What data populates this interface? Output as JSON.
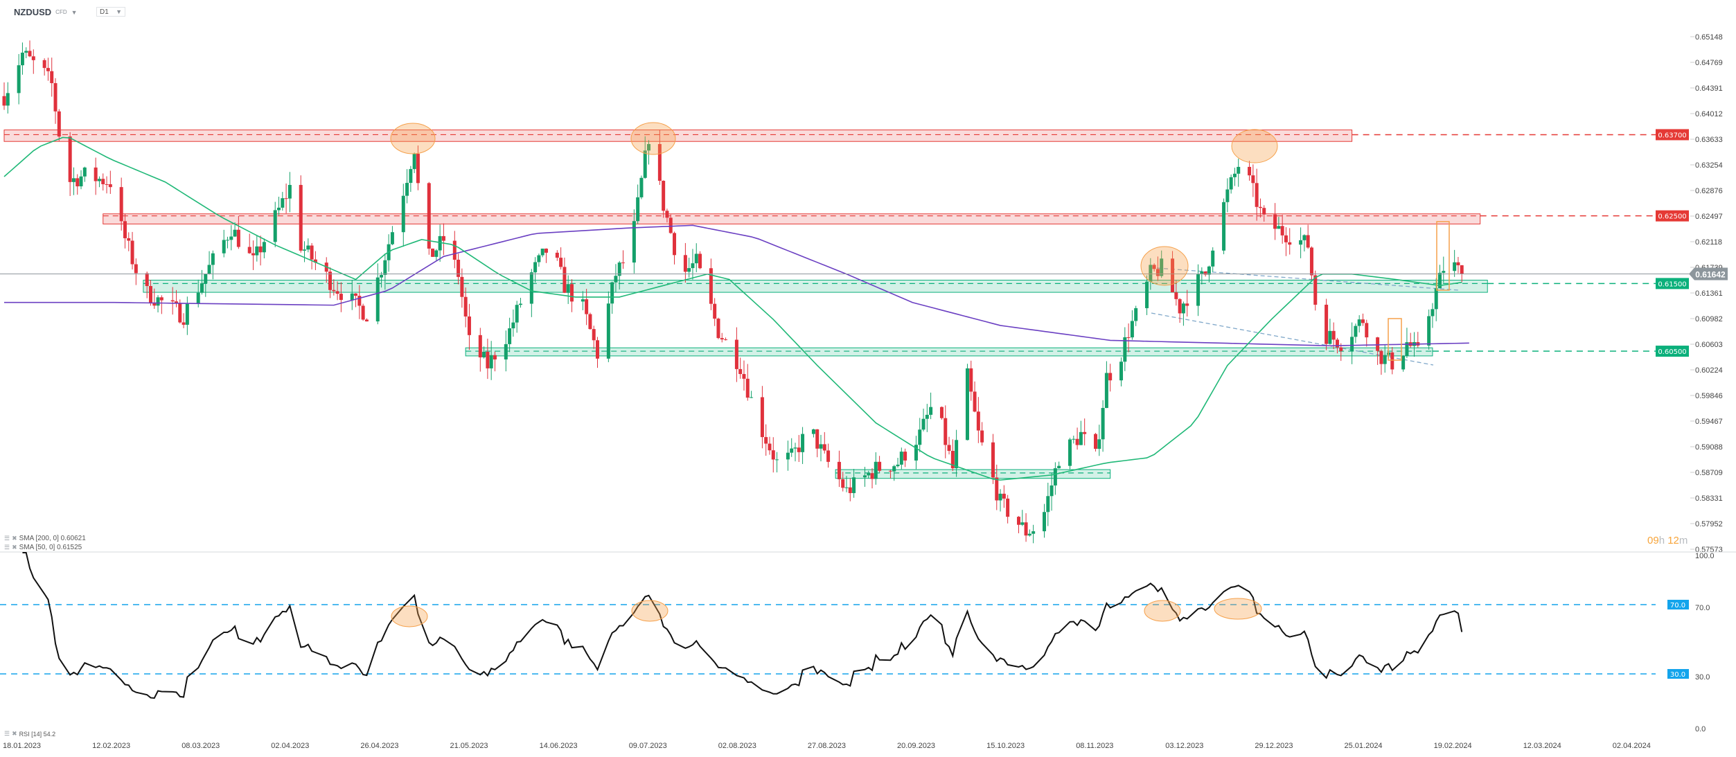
{
  "header": {
    "symbol": "NZDUSD",
    "instrument_type": "CFD",
    "timeframe": "D1"
  },
  "legend": {
    "sma200": "SMA [200, 0] 0.60621",
    "sma50": "SMA [50, 0] 0.61525",
    "rsi": "RSI [14] 54.2"
  },
  "countdown": {
    "hours": "09",
    "h": "h",
    "minutes": "12",
    "m": "m"
  },
  "colors": {
    "bull": "#14a06a",
    "bear": "#e0313c",
    "sma50": "#1fb877",
    "sma200": "#6a3fc2",
    "resistance": "#e53935",
    "support": "#0bb07b",
    "rsi": "#111111",
    "rsi_level": "#13a4ec",
    "highlight": "#f5a04a",
    "price_tag": "#8d969c"
  },
  "chart_data": {
    "type": "candlestick",
    "symbol": "NZDUSD",
    "start_date": "2023-01-18",
    "price_axis_ticks": [
      "0.65148",
      "0.64769",
      "0.64391",
      "0.64012",
      "0.63633",
      "0.63254",
      "0.62876",
      "0.62497",
      "0.62118",
      "0.61739",
      "0.61361",
      "0.60982",
      "0.60603",
      "0.60224",
      "0.59846",
      "0.59467",
      "0.59088",
      "0.58709",
      "0.58331",
      "0.57952",
      "0.57573"
    ],
    "date_ticks": [
      "18.01.2023",
      "12.02.2023",
      "08.03.2023",
      "02.04.2023",
      "26.04.2023",
      "21.05.2023",
      "14.06.2023",
      "09.07.2023",
      "02.08.2023",
      "27.08.2023",
      "20.09.2023",
      "15.10.2023",
      "08.11.2023",
      "03.12.2023",
      "29.12.2023",
      "25.01.2024",
      "19.02.2024",
      "12.03.2024",
      "02.04.2024"
    ],
    "price_range": [
      0.57573,
      0.65148
    ],
    "current_price": "0.61642",
    "close_path_day_price": [
      [
        0,
        0.6427
      ],
      [
        5,
        0.649
      ],
      [
        11,
        0.646
      ],
      [
        13,
        0.6444
      ],
      [
        17,
        0.63
      ],
      [
        22,
        0.631
      ],
      [
        29,
        0.63
      ],
      [
        32,
        0.6232
      ],
      [
        38,
        0.6139
      ],
      [
        49,
        0.6103
      ],
      [
        55,
        0.6164
      ],
      [
        62,
        0.6232
      ],
      [
        68,
        0.6181
      ],
      [
        78,
        0.6292
      ],
      [
        81,
        0.6207
      ],
      [
        90,
        0.6147
      ],
      [
        99,
        0.6105
      ],
      [
        103,
        0.6173
      ],
      [
        108,
        0.6266
      ],
      [
        112,
        0.6351
      ],
      [
        115,
        0.6181
      ],
      [
        120,
        0.6215
      ],
      [
        124,
        0.6164
      ],
      [
        127,
        0.6063
      ],
      [
        132,
        0.6029
      ],
      [
        138,
        0.608
      ],
      [
        144,
        0.6164
      ],
      [
        149,
        0.6207
      ],
      [
        153,
        0.6147
      ],
      [
        158,
        0.6114
      ],
      [
        162,
        0.6046
      ],
      [
        167,
        0.6164
      ],
      [
        171,
        0.6198
      ],
      [
        176,
        0.6368
      ],
      [
        180,
        0.6266
      ],
      [
        185,
        0.6164
      ],
      [
        189,
        0.6181
      ],
      [
        195,
        0.608
      ],
      [
        201,
        0.6029
      ],
      [
        206,
        0.5944
      ],
      [
        211,
        0.5885
      ],
      [
        215,
        0.5893
      ],
      [
        220,
        0.5936
      ],
      [
        224,
        0.5893
      ],
      [
        230,
        0.5843
      ],
      [
        238,
        0.5876
      ],
      [
        244,
        0.5885
      ],
      [
        250,
        0.5927
      ],
      [
        254,
        0.5978
      ],
      [
        259,
        0.5876
      ],
      [
        263,
        0.6012
      ],
      [
        266,
        0.5927
      ],
      [
        272,
        0.5826
      ],
      [
        279,
        0.5783
      ],
      [
        283,
        0.5792
      ],
      [
        288,
        0.5893
      ],
      [
        294,
        0.5927
      ],
      [
        298,
        0.5893
      ],
      [
        301,
        0.6012
      ],
      [
        304,
        0.6029
      ],
      [
        307,
        0.608
      ],
      [
        310,
        0.6114
      ],
      [
        313,
        0.6164
      ],
      [
        316,
        0.6173
      ],
      [
        321,
        0.6114
      ],
      [
        325,
        0.6147
      ],
      [
        328,
        0.6164
      ],
      [
        331,
        0.6232
      ],
      [
        334,
        0.6283
      ],
      [
        337,
        0.6325
      ],
      [
        340,
        0.63
      ],
      [
        344,
        0.6241
      ],
      [
        350,
        0.6224
      ],
      [
        356,
        0.6207
      ],
      [
        359,
        0.608
      ],
      [
        365,
        0.6063
      ],
      [
        371,
        0.6097
      ],
      [
        375,
        0.6046
      ],
      [
        380,
        0.6029
      ],
      [
        383,
        0.6063
      ],
      [
        386,
        0.6046
      ],
      [
        389,
        0.6105
      ],
      [
        393,
        0.6173
      ],
      [
        395,
        0.618
      ],
      [
        398,
        0.61642
      ]
    ],
    "sma200_day_price": [
      [
        0,
        0.6122
      ],
      [
        30,
        0.6122
      ],
      [
        90,
        0.6118
      ],
      [
        105,
        0.614
      ],
      [
        120,
        0.619
      ],
      [
        145,
        0.6224
      ],
      [
        170,
        0.6232
      ],
      [
        188,
        0.6236
      ],
      [
        205,
        0.6218
      ],
      [
        230,
        0.6164
      ],
      [
        248,
        0.6122
      ],
      [
        272,
        0.6088
      ],
      [
        302,
        0.6066
      ],
      [
        332,
        0.6062
      ],
      [
        362,
        0.6058
      ],
      [
        400,
        0.6062
      ]
    ],
    "sma50_day_price": [
      [
        0,
        0.6308
      ],
      [
        9,
        0.6351
      ],
      [
        17,
        0.6368
      ],
      [
        29,
        0.6334
      ],
      [
        44,
        0.63
      ],
      [
        59,
        0.6249
      ],
      [
        74,
        0.6207
      ],
      [
        96,
        0.6156
      ],
      [
        105,
        0.6198
      ],
      [
        114,
        0.6215
      ],
      [
        123,
        0.6207
      ],
      [
        135,
        0.6164
      ],
      [
        144,
        0.6139
      ],
      [
        156,
        0.613
      ],
      [
        168,
        0.613
      ],
      [
        180,
        0.6147
      ],
      [
        192,
        0.6164
      ],
      [
        198,
        0.6156
      ],
      [
        210,
        0.6097
      ],
      [
        222,
        0.6029
      ],
      [
        238,
        0.5944
      ],
      [
        253,
        0.5893
      ],
      [
        271,
        0.5859
      ],
      [
        286,
        0.5867
      ],
      [
        301,
        0.5885
      ],
      [
        313,
        0.5893
      ],
      [
        325,
        0.5944
      ],
      [
        334,
        0.6029
      ],
      [
        346,
        0.6097
      ],
      [
        359,
        0.6164
      ],
      [
        368,
        0.6164
      ],
      [
        380,
        0.6156
      ],
      [
        392,
        0.6147
      ],
      [
        399,
        0.61525
      ]
    ],
    "levels": [
      {
        "price": 0.637,
        "label": "0.63700",
        "kind": "resistance",
        "zone": [
          0.636,
          0.6377
        ],
        "zone_days": [
          0,
          368
        ]
      },
      {
        "price": 0.625,
        "label": "0.62500",
        "kind": "resistance",
        "zone": [
          0.6238,
          0.6253
        ],
        "zone_days": [
          27,
          403
        ]
      },
      {
        "price": 0.615,
        "label": "0.61500",
        "kind": "support",
        "zone": [
          0.6137,
          0.6155
        ],
        "zone_days": [
          38,
          405
        ]
      },
      {
        "price": 0.605,
        "label": "0.60500",
        "kind": "support",
        "zone": [
          0.6043,
          0.6055
        ],
        "zone_days": [
          126,
          390
        ]
      },
      {
        "price": 0.587,
        "label": "",
        "kind": "support",
        "zone": [
          0.5862,
          0.5875
        ],
        "zone_days": [
          227,
          302
        ]
      }
    ],
    "rsi": {
      "period": 14,
      "value": 54.2,
      "levels": [
        {
          "value": 70,
          "label": "70.0"
        },
        {
          "value": 30,
          "label": "30.0"
        }
      ],
      "axis_ticks": [
        "100.0",
        "70.0",
        "30.0",
        "0.0"
      ],
      "range": [
        0,
        100
      ]
    }
  }
}
